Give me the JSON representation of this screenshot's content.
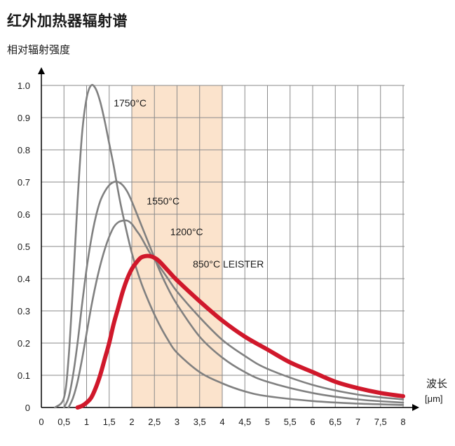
{
  "title": "红外加热器辐射谱",
  "chart_data": {
    "type": "line",
    "title": "红外加热器辐射谱",
    "ylabel": "相对辐射强度",
    "xlabel": "波长",
    "xunit": "[μm]",
    "xlim": [
      0,
      8
    ],
    "ylim": [
      0,
      1.0
    ],
    "grid": true,
    "x_ticks": [
      "0",
      "0,5",
      "1",
      "1,5",
      "2",
      "2,5",
      "3",
      "3,5",
      "4",
      "4,5",
      "5",
      "5,5",
      "6",
      "6,5",
      "7",
      "7,5",
      "8"
    ],
    "y_ticks": [
      "0",
      "0.1",
      "0.2",
      "0.3",
      "0.4",
      "0.5",
      "0.6",
      "0.7",
      "0.8",
      "0.9",
      "1.0"
    ],
    "highlight_band": {
      "x_start": 2,
      "x_end": 4,
      "color": "#fbe3cc"
    },
    "series": [
      {
        "name": "1750°C",
        "color": "#808080",
        "x": [
          0.3,
          0.5,
          0.6,
          0.7,
          0.8,
          0.9,
          1.0,
          1.1,
          1.2,
          1.3,
          1.4,
          1.5,
          1.6,
          1.7,
          1.8,
          2.0,
          2.2,
          2.4,
          2.6,
          2.8,
          3.0,
          3.5,
          4.0,
          4.5,
          5.0,
          6.0,
          7.0,
          8.0
        ],
        "values": [
          0,
          0.03,
          0.15,
          0.38,
          0.64,
          0.85,
          0.96,
          1.0,
          0.99,
          0.95,
          0.89,
          0.82,
          0.75,
          0.67,
          0.6,
          0.48,
          0.39,
          0.32,
          0.26,
          0.21,
          0.17,
          0.11,
          0.075,
          0.05,
          0.035,
          0.02,
          0.012,
          0.008
        ]
      },
      {
        "name": "1550°C",
        "color": "#808080",
        "x": [
          0.5,
          0.6,
          0.7,
          0.8,
          0.9,
          1.0,
          1.1,
          1.2,
          1.3,
          1.4,
          1.5,
          1.6,
          1.7,
          1.8,
          1.9,
          2.0,
          2.2,
          2.4,
          2.6,
          2.8,
          3.0,
          3.5,
          4.0,
          4.5,
          5.0,
          6.0,
          7.0,
          8.0
        ],
        "values": [
          0,
          0.03,
          0.1,
          0.2,
          0.32,
          0.43,
          0.52,
          0.59,
          0.64,
          0.67,
          0.69,
          0.7,
          0.7,
          0.69,
          0.67,
          0.64,
          0.57,
          0.5,
          0.43,
          0.37,
          0.32,
          0.22,
          0.155,
          0.11,
          0.08,
          0.045,
          0.025,
          0.015
        ]
      },
      {
        "name": "1200°C",
        "color": "#808080",
        "x": [
          0.6,
          0.7,
          0.8,
          0.9,
          1.0,
          1.1,
          1.2,
          1.3,
          1.4,
          1.5,
          1.6,
          1.7,
          1.8,
          1.9,
          2.0,
          2.1,
          2.2,
          2.4,
          2.6,
          2.8,
          3.0,
          3.5,
          4.0,
          4.5,
          5.0,
          6.0,
          7.0,
          8.0
        ],
        "values": [
          0,
          0.03,
          0.08,
          0.15,
          0.23,
          0.31,
          0.38,
          0.44,
          0.49,
          0.53,
          0.56,
          0.575,
          0.58,
          0.58,
          0.57,
          0.55,
          0.53,
          0.48,
          0.44,
          0.4,
          0.36,
          0.28,
          0.21,
          0.16,
          0.12,
          0.07,
          0.04,
          0.025
        ]
      },
      {
        "name": "850°C LEISTER",
        "color": "#d0182b",
        "x": [
          0.8,
          0.9,
          1.0,
          1.1,
          1.2,
          1.3,
          1.4,
          1.5,
          1.6,
          1.7,
          1.8,
          1.9,
          2.0,
          2.1,
          2.2,
          2.3,
          2.4,
          2.5,
          2.6,
          2.8,
          3.0,
          3.5,
          4.0,
          4.5,
          5.0,
          5.5,
          6.0,
          6.5,
          7.0,
          7.5,
          8.0
        ],
        "values": [
          0,
          0.005,
          0.015,
          0.03,
          0.06,
          0.1,
          0.15,
          0.2,
          0.26,
          0.31,
          0.36,
          0.4,
          0.43,
          0.45,
          0.465,
          0.47,
          0.47,
          0.465,
          0.455,
          0.425,
          0.395,
          0.33,
          0.27,
          0.22,
          0.18,
          0.14,
          0.11,
          0.08,
          0.06,
          0.045,
          0.035
        ]
      }
    ],
    "labels": [
      {
        "text": "1750°C"
      },
      {
        "text": "1550°C"
      },
      {
        "text": "1200°C"
      },
      {
        "text": "850°C LEISTER",
        "color": "#d0182b"
      }
    ]
  }
}
